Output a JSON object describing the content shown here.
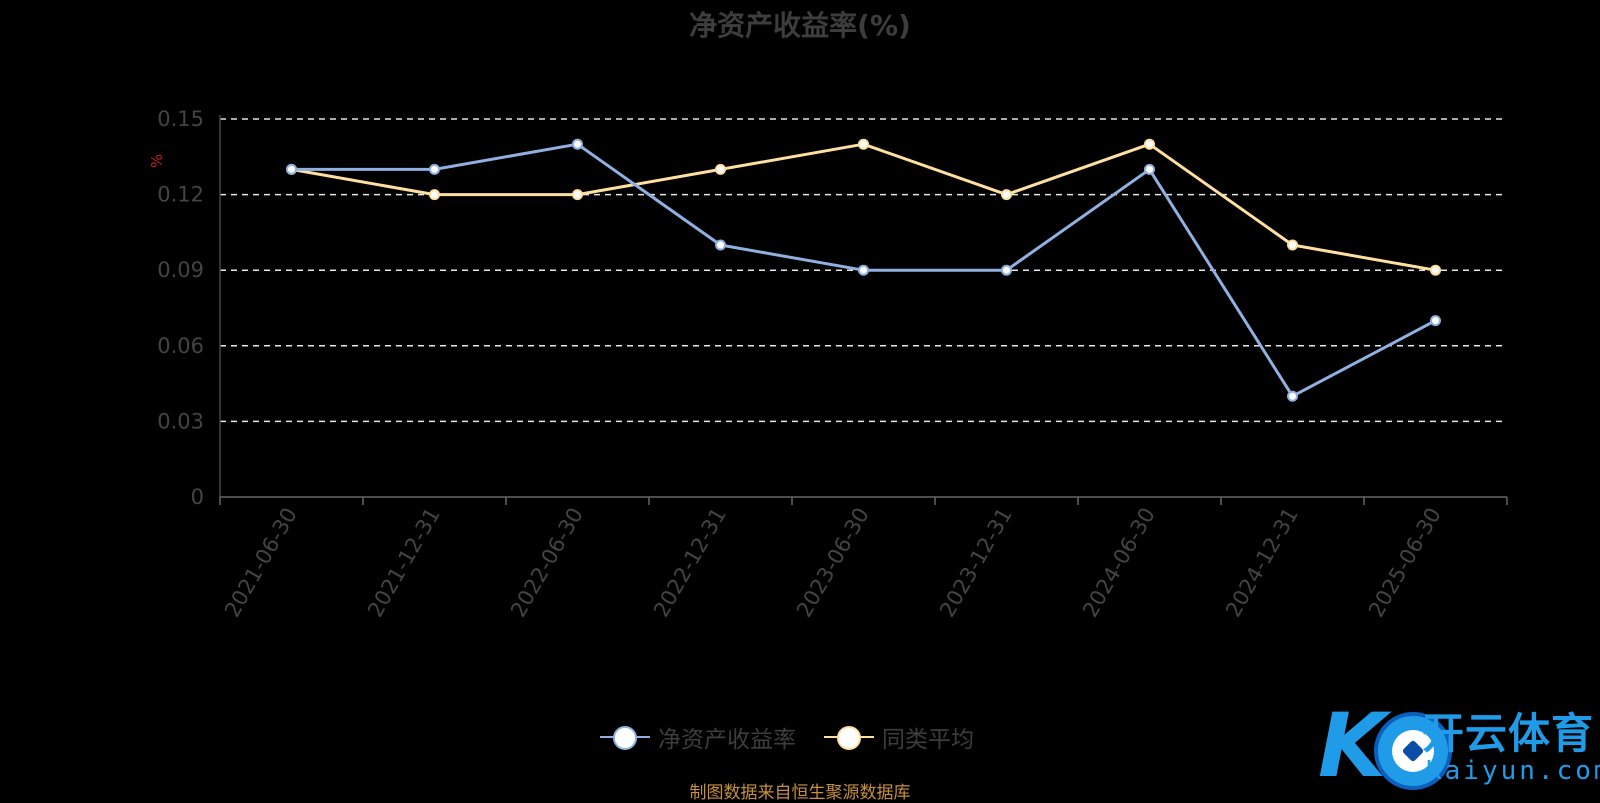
{
  "title": "净资产收益率(%)",
  "source": "制图数据来自恒生聚源数据库",
  "watermark": {
    "cn": "开云体育",
    "en": "Kaiyun.com"
  },
  "chart_data": {
    "type": "line",
    "title": "净资产收益率(%)",
    "ylabel": "%",
    "ylim": [
      0,
      0.15
    ],
    "yticks": [
      0,
      0.03,
      0.06,
      0.09,
      0.12,
      0.15
    ],
    "ytick_labels": [
      "0",
      "0.03",
      "0.06",
      "0.09",
      "0.12",
      "0.15"
    ],
    "grid": true,
    "legend_position": "bottom",
    "categories": [
      "2021-06-30",
      "2021-12-31",
      "2022-06-30",
      "2022-12-31",
      "2023-06-30",
      "2023-12-31",
      "2024-06-30",
      "2024-12-31",
      "2025-06-30"
    ],
    "series": [
      {
        "name": "净资产收益率",
        "color": "#8fb0e0",
        "values": [
          0.13,
          0.13,
          0.14,
          0.1,
          0.09,
          0.09,
          0.13,
          0.04,
          0.07
        ]
      },
      {
        "name": "同类平均",
        "color": "#ffdfa0",
        "values": [
          0.13,
          0.12,
          0.12,
          0.13,
          0.14,
          0.12,
          0.14,
          0.1,
          0.09
        ]
      }
    ]
  }
}
